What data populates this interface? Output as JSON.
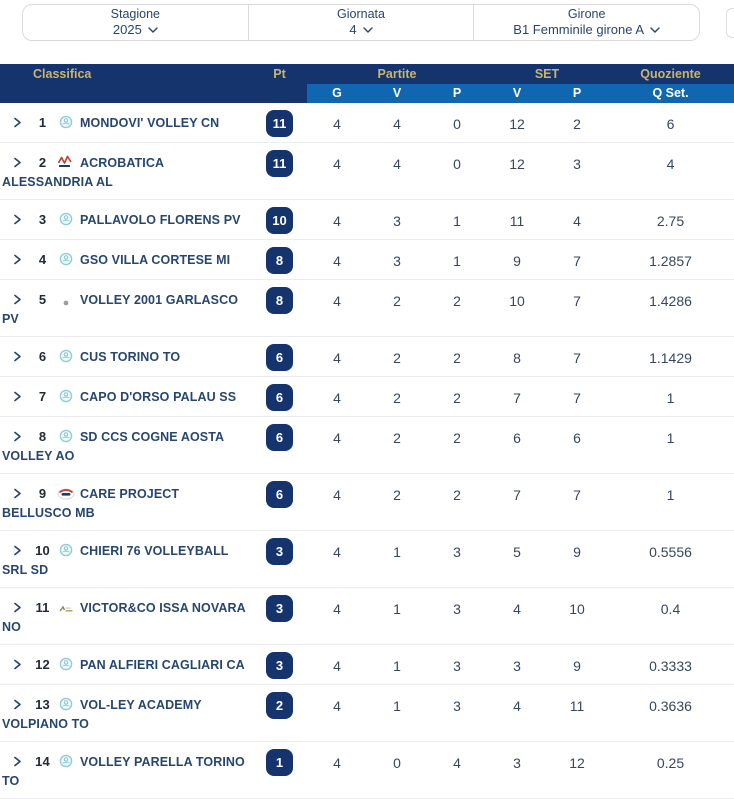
{
  "filters": {
    "stagione": {
      "label": "Stagione",
      "value": "2025"
    },
    "giornata": {
      "label": "Giornata",
      "value": "4"
    },
    "girone": {
      "label": "Girone",
      "value": "B1 Femminile girone A"
    }
  },
  "table": {
    "header": {
      "classifica": "Classifica",
      "pt": "Pt",
      "partite": "Partite",
      "set": "SET",
      "quoziente": "Quoziente",
      "sub": {
        "g": "G",
        "v": "V",
        "p": "P",
        "set_v": "V",
        "set_p": "P",
        "q_set": "Q Set."
      }
    },
    "rows": [
      {
        "rank": "1",
        "team": "MONDOVI' VOLLEY CN",
        "logo": "volleyball-club-icon",
        "pt": "11",
        "g": "4",
        "v": "4",
        "p": "0",
        "sv": "12",
        "sp": "2",
        "q": "6"
      },
      {
        "rank": "2",
        "team": "ACROBATICA ALESSANDRIA AL",
        "logo": "acrobatica-logo-icon",
        "pt": "11",
        "g": "4",
        "v": "4",
        "p": "0",
        "sv": "12",
        "sp": "3",
        "q": "4"
      },
      {
        "rank": "3",
        "team": "PALLAVOLO FLORENS PV",
        "logo": "volleyball-club-icon",
        "pt": "10",
        "g": "4",
        "v": "3",
        "p": "1",
        "sv": "11",
        "sp": "4",
        "q": "2.75"
      },
      {
        "rank": "4",
        "team": "GSO VILLA CORTESE MI",
        "logo": "volleyball-club-icon",
        "pt": "8",
        "g": "4",
        "v": "3",
        "p": "1",
        "sv": "9",
        "sp": "7",
        "q": "1.2857"
      },
      {
        "rank": "5",
        "team": "VOLLEY 2001 GARLASCO PV",
        "logo": "dot-logo-icon",
        "pt": "8",
        "g": "4",
        "v": "2",
        "p": "2",
        "sv": "10",
        "sp": "7",
        "q": "1.4286"
      },
      {
        "rank": "6",
        "team": "CUS TORINO TO",
        "logo": "volleyball-club-icon",
        "pt": "6",
        "g": "4",
        "v": "2",
        "p": "2",
        "sv": "8",
        "sp": "7",
        "q": "1.1429"
      },
      {
        "rank": "7",
        "team": "CAPO D'ORSO PALAU SS",
        "logo": "volleyball-club-icon",
        "pt": "6",
        "g": "4",
        "v": "2",
        "p": "2",
        "sv": "7",
        "sp": "7",
        "q": "1"
      },
      {
        "rank": "8",
        "team": "SD CCS COGNE AOSTA VOLLEY AO",
        "logo": "volleyball-club-icon",
        "pt": "6",
        "g": "4",
        "v": "2",
        "p": "2",
        "sv": "6",
        "sp": "6",
        "q": "1"
      },
      {
        "rank": "9",
        "team": "CARE PROJECT BELLUSCO MB",
        "logo": "crest-logo-icon",
        "pt": "6",
        "g": "4",
        "v": "2",
        "p": "2",
        "sv": "7",
        "sp": "7",
        "q": "1"
      },
      {
        "rank": "10",
        "team": "CHIERI 76 VOLLEYBALL SRL SD",
        "logo": "volleyball-club-icon",
        "pt": "3",
        "g": "4",
        "v": "1",
        "p": "3",
        "sv": "5",
        "sp": "9",
        "q": "0.5556"
      },
      {
        "rank": "11",
        "team": "VICTOR&CO ISSA NOVARA NO",
        "logo": "wide-logo-icon",
        "pt": "3",
        "g": "4",
        "v": "1",
        "p": "3",
        "sv": "4",
        "sp": "10",
        "q": "0.4"
      },
      {
        "rank": "12",
        "team": "PAN ALFIERI CAGLIARI CA",
        "logo": "volleyball-club-icon",
        "pt": "3",
        "g": "4",
        "v": "1",
        "p": "3",
        "sv": "3",
        "sp": "9",
        "q": "0.3333"
      },
      {
        "rank": "13",
        "team": "VOL-LEY ACADEMY VOLPIANO TO",
        "logo": "volleyball-club-icon",
        "pt": "2",
        "g": "4",
        "v": "1",
        "p": "3",
        "sv": "4",
        "sp": "11",
        "q": "0.3636"
      },
      {
        "rank": "14",
        "team": "VOLLEY PARELLA TORINO TO",
        "logo": "volleyball-club-icon",
        "pt": "1",
        "g": "4",
        "v": "0",
        "p": "4",
        "sv": "3",
        "sp": "12",
        "q": "0.25"
      }
    ]
  },
  "colors": {
    "navy": "#15346e",
    "ltblue": "#1166b2",
    "gold": "#c9b46e",
    "team": "#27466f",
    "num": "#36465f"
  }
}
